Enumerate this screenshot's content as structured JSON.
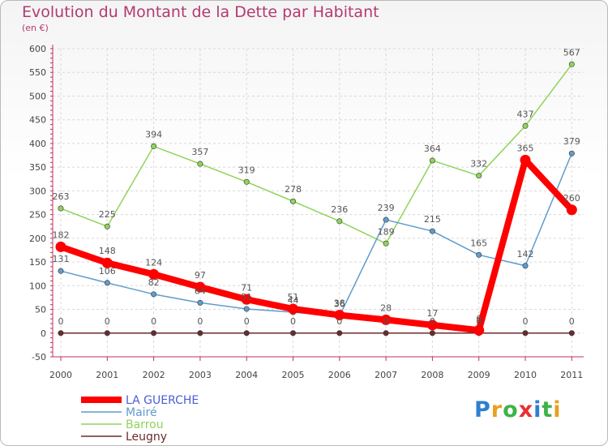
{
  "chart_data": {
    "type": "line",
    "title": "Evolution du Montant de la Dette par Habitant",
    "subtitle": "(en €)",
    "xlabel": "",
    "ylabel": "",
    "ylim": [
      -50,
      600
    ],
    "yticks": [
      -50,
      0,
      50,
      100,
      150,
      200,
      250,
      300,
      350,
      400,
      450,
      500,
      550,
      600
    ],
    "categories": [
      "2000",
      "2001",
      "2002",
      "2003",
      "2004",
      "2005",
      "2006",
      "2007",
      "2008",
      "2009",
      "2010",
      "2011"
    ],
    "grid": true,
    "legend_position": "bottom-left",
    "series": [
      {
        "name": "Leugny",
        "color": "#6b2b2b",
        "values": [
          0,
          0,
          0,
          0,
          0,
          0,
          0,
          0,
          0,
          0,
          0,
          0
        ]
      },
      {
        "name": "Barrou",
        "color": "#8fd45a",
        "values": [
          263,
          225,
          394,
          357,
          319,
          278,
          236,
          189,
          364,
          332,
          437,
          567
        ]
      },
      {
        "name": "Mairé",
        "color": "#5f9ccc",
        "values": [
          131,
          106,
          82,
          64,
          51,
          44,
          36,
          239,
          215,
          165,
          142,
          379
        ]
      },
      {
        "name": "LA GUERCHE",
        "color": "#ff0000",
        "values": [
          182,
          148,
          124,
          97,
          71,
          51,
          38,
          28,
          17,
          6,
          365,
          260
        ]
      }
    ]
  },
  "legend": {
    "items": [
      "LA GUERCHE",
      "Mairé",
      "Barrou",
      "Leugny"
    ],
    "text_colors": [
      "#4b5fd6",
      "#5f9ccc",
      "#8fd45a",
      "#6b2b2b"
    ]
  },
  "logo": {
    "text": "Proxiti",
    "letter_colors": [
      "#2f7fd0",
      "#e8a020",
      "#3cb34a",
      "#e83030",
      "#2f7fd0",
      "#3cb34a",
      "#e8a020"
    ]
  }
}
